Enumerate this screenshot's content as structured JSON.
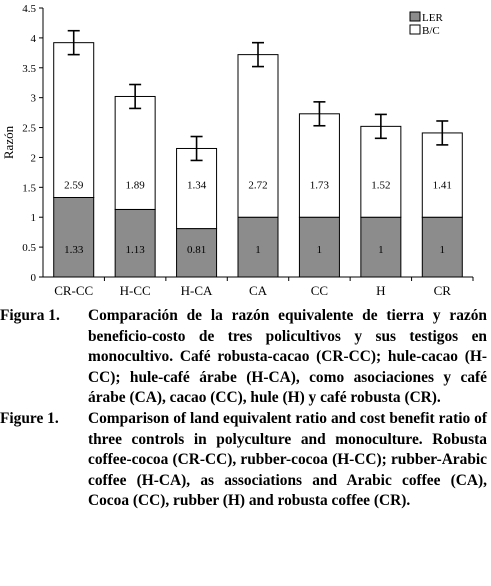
{
  "chart_data": {
    "type": "bar",
    "stacked": true,
    "categories": [
      "CR-CC",
      "H-CC",
      "H-CA",
      "CA",
      "CC",
      "H",
      "CR"
    ],
    "series": [
      {
        "name": "LER",
        "values": [
          1.33,
          1.13,
          0.81,
          1,
          1,
          1,
          1
        ],
        "color": "#8c8c8c",
        "labels": [
          "1.33",
          "1.13",
          "0.81",
          "1",
          "1",
          "1",
          "1"
        ]
      },
      {
        "name": "B/C",
        "values": [
          2.59,
          1.89,
          1.34,
          2.72,
          1.73,
          1.52,
          1.41
        ],
        "color": "#ffffff",
        "labels": [
          "2.59",
          "1.89",
          "1.34",
          "2.72",
          "1.73",
          "1.52",
          "1.41"
        ]
      }
    ],
    "error_bars": [
      0.2,
      0.2,
      0.2,
      0.2,
      0.2,
      0.2,
      0.2
    ],
    "ylabel": "Razón",
    "ylim": [
      0,
      4.5
    ],
    "yticks": [
      "0",
      "0.5",
      "1",
      "1.5",
      "2",
      "2.5",
      "3",
      "3.5",
      "4",
      "4.5"
    ],
    "legend_position": "top-right",
    "grid": false
  },
  "captions": [
    {
      "label": "Figura 1.",
      "text": "Comparación de la razón equivalente de tierra y razón beneficio-costo de tres policultivos y sus testigos en monocultivo. Café robusta-cacao (CR-CC); hule-cacao (H-CC); hule-café árabe (H-CA), como asociaciones y café árabe (CA), cacao (CC), hule (H) y café robusta (CR)."
    },
    {
      "label": "Figure 1.",
      "text": "Comparison of land equivalent ratio and cost benefit ratio of three controls in polyculture and monoculture. Robusta coffee-cocoa (CR-CC), rubber-cocoa (H-CC); rubber-Arabic coffee (H-CA), as associations and Arabic coffee (CA), Cocoa (CC), rubber (H) and robusta coffee (CR)."
    }
  ]
}
